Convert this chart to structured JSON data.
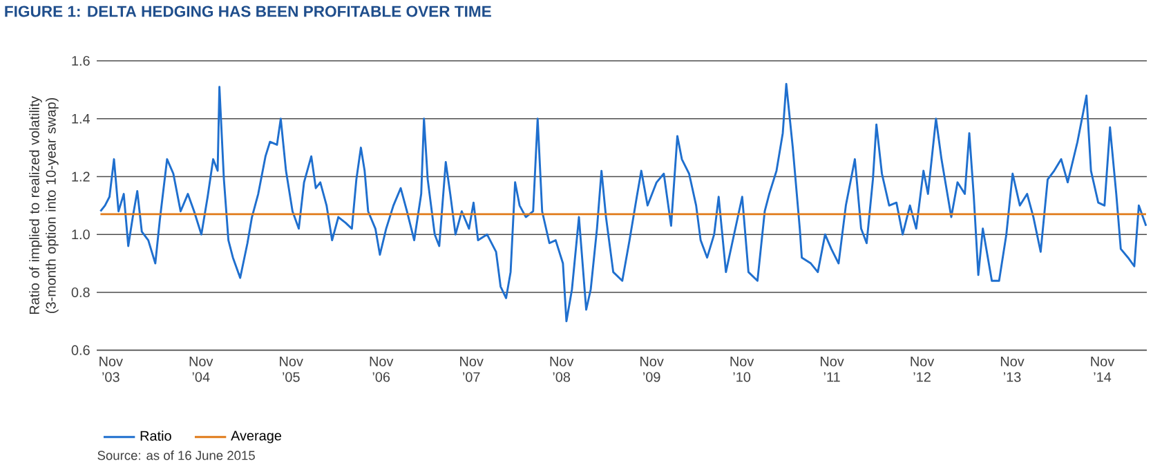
{
  "chart_data": {
    "type": "line",
    "title": "FIGURE 1: DELTA HEDGING HAS BEEN PROFITABLE OVER TIME",
    "ylabel": "Ratio of implied to realized volatility (3-month option into 10-year swap)",
    "xlim": [
      "2003-09-05",
      "2015-04-29"
    ],
    "ylim": [
      0.6,
      1.6
    ],
    "yticks": [
      0.6,
      0.8,
      {
        "value": 1.0,
        "label": "1.0"
      },
      1.2,
      1.4,
      1.6
    ],
    "xticks": [
      {
        "value": "2003-11",
        "label": "Nov ’03"
      },
      {
        "value": "2004-11",
        "label": "Nov ’04"
      },
      {
        "value": "2005-11",
        "label": "Nov ’05"
      },
      {
        "value": "2006-11",
        "label": "Nov ’06"
      },
      {
        "value": "2007-11",
        "label": "Nov ’07"
      },
      {
        "value": "2008-11",
        "label": "Nov ’08"
      },
      {
        "value": "2009-11",
        "label": "Nov ’09"
      },
      {
        "value": "2010-11",
        "label": "Nov ’10"
      },
      {
        "value": "2011-11",
        "label": "Nov ’11"
      },
      {
        "value": "2012-11",
        "label": "Nov ’12"
      },
      {
        "value": "2013-11",
        "label": "Nov ’13"
      },
      {
        "value": "2014-11",
        "label": "Nov ’14"
      }
    ],
    "grid": "y",
    "legend": "bottom left",
    "line_style": "solid",
    "series": [
      {
        "name": "Ratio",
        "color": "#1f6fce",
        "x": [
          "2003-09-20",
          "2003-10-08",
          "2003-10-26",
          "2003-11-14",
          "2003-12-02",
          "2003-12-23",
          "2004-01-11",
          "2004-01-29",
          "2004-02-17",
          "2004-03-05",
          "2004-04-01",
          "2004-04-29",
          "2004-05-17",
          "2004-06-16",
          "2004-07-11",
          "2004-08-10",
          "2004-09-09",
          "2004-10-04",
          "2004-11-03",
          "2004-11-28",
          "2004-12-20",
          "2005-01-08",
          "2005-01-15",
          "2005-02-03",
          "2005-02-21",
          "2005-03-09",
          "2005-04-08",
          "2005-05-07",
          "2005-05-25",
          "2005-06-20",
          "2005-07-19",
          "2005-08-07",
          "2005-09-05",
          "2005-09-20",
          "2005-10-11",
          "2005-11-07",
          "2005-12-02",
          "2005-12-23",
          "2006-01-22",
          "2006-02-10",
          "2006-02-28",
          "2006-03-23",
          "2006-04-15",
          "2006-05-10",
          "2006-06-09",
          "2006-07-04",
          "2006-07-22",
          "2006-08-10",
          "2006-08-25",
          "2006-09-09",
          "2006-10-08",
          "2006-10-26",
          "2006-11-21",
          "2006-12-20",
          "2007-01-19",
          "2007-02-14",
          "2007-03-13",
          "2007-04-11",
          "2007-04-22",
          "2007-05-07",
          "2007-06-05",
          "2007-06-23",
          "2007-07-19",
          "2007-08-07",
          "2007-08-28",
          "2007-09-23",
          "2007-10-22",
          "2007-11-10",
          "2007-11-28",
          "2008-01-04",
          "2008-02-10",
          "2008-02-28",
          "2008-03-20",
          "2008-04-08",
          "2008-04-26",
          "2008-05-14",
          "2008-06-09",
          "2008-07-08",
          "2008-07-26",
          "2008-08-14",
          "2008-09-13",
          "2008-10-08",
          "2008-11-07",
          "2008-11-21",
          "2008-12-13",
          "2009-01-11",
          "2009-02-10",
          "2009-02-28",
          "2009-03-23",
          "2009-04-11",
          "2009-04-29",
          "2009-05-28",
          "2009-07-04",
          "2009-08-03",
          "2009-09-02",
          "2009-09-20",
          "2009-10-15",
          "2009-11-21",
          "2009-12-20",
          "2010-01-19",
          "2010-02-14",
          "2010-03-02",
          "2010-04-01",
          "2010-04-29",
          "2010-05-17",
          "2010-06-13",
          "2010-07-11",
          "2010-07-29",
          "2010-08-28",
          "2010-09-23",
          "2010-11-03",
          "2010-11-28",
          "2011-01-04",
          "2011-02-03",
          "2011-02-21",
          "2011-03-20",
          "2011-04-15",
          "2011-04-29",
          "2011-05-25",
          "2011-06-23",
          "2011-07-01",
          "2011-08-07",
          "2011-09-05",
          "2011-10-04",
          "2011-10-29",
          "2011-11-28",
          "2011-12-27",
          "2012-02-03",
          "2012-02-28",
          "2012-03-20",
          "2012-04-15",
          "2012-04-29",
          "2012-05-21",
          "2012-06-20",
          "2012-07-19",
          "2012-08-14",
          "2012-09-13",
          "2012-10-08",
          "2012-11-07",
          "2012-11-25",
          "2012-12-27",
          "2013-01-19",
          "2013-02-28",
          "2013-03-23",
          "2013-04-22",
          "2013-05-10",
          "2013-05-28",
          "2013-06-16",
          "2013-07-04",
          "2013-08-10",
          "2013-09-09",
          "2013-10-08",
          "2013-11-03",
          "2013-12-02",
          "2014-01-01",
          "2014-01-26",
          "2014-02-25",
          "2014-03-23",
          "2014-04-19",
          "2014-05-17",
          "2014-06-13",
          "2014-07-22",
          "2014-08-28",
          "2014-09-16",
          "2014-10-15",
          "2014-11-10",
          "2014-12-02",
          "2014-12-27",
          "2015-01-15",
          "2015-02-14",
          "2015-03-09",
          "2015-03-27",
          "2015-04-26"
        ],
        "values": [
          1.08,
          1.1,
          1.13,
          1.26,
          1.08,
          1.14,
          0.96,
          1.06,
          1.15,
          1.01,
          0.98,
          0.9,
          1.05,
          1.26,
          1.21,
          1.08,
          1.14,
          1.08,
          1.0,
          1.13,
          1.26,
          1.22,
          1.51,
          1.19,
          0.98,
          0.92,
          0.85,
          0.97,
          1.06,
          1.14,
          1.27,
          1.32,
          1.31,
          1.4,
          1.22,
          1.08,
          1.02,
          1.18,
          1.27,
          1.16,
          1.18,
          1.1,
          0.98,
          1.06,
          1.04,
          1.02,
          1.19,
          1.3,
          1.22,
          1.08,
          1.02,
          0.93,
          1.02,
          1.1,
          1.16,
          1.08,
          0.98,
          1.14,
          1.4,
          1.19,
          1.0,
          0.96,
          1.25,
          1.14,
          1.0,
          1.08,
          1.02,
          1.11,
          0.98,
          1.0,
          0.94,
          0.82,
          0.78,
          0.87,
          1.18,
          1.1,
          1.06,
          1.08,
          1.4,
          1.08,
          0.97,
          0.98,
          0.9,
          0.7,
          0.81,
          1.06,
          0.74,
          0.81,
          1.02,
          1.22,
          1.06,
          0.87,
          0.84,
          0.98,
          1.13,
          1.22,
          1.1,
          1.18,
          1.21,
          1.03,
          1.34,
          1.26,
          1.21,
          1.1,
          0.98,
          0.92,
          1.0,
          1.13,
          0.87,
          0.97,
          1.13,
          0.87,
          0.84,
          1.08,
          1.14,
          1.22,
          1.35,
          1.52,
          1.3,
          1.02,
          0.92,
          0.9,
          0.87,
          1.0,
          0.95,
          0.9,
          1.1,
          1.26,
          1.02,
          0.97,
          1.19,
          1.38,
          1.21,
          1.1,
          1.11,
          1.0,
          1.1,
          1.02,
          1.22,
          1.14,
          1.4,
          1.26,
          1.06,
          1.18,
          1.14,
          1.35,
          1.13,
          0.86,
          1.02,
          0.84,
          0.84,
          1.0,
          1.21,
          1.1,
          1.14,
          1.06,
          0.94,
          1.19,
          1.22,
          1.26,
          1.18,
          1.32,
          1.48,
          1.22,
          1.11,
          1.1,
          1.37,
          1.14,
          0.95,
          0.92,
          0.89,
          1.1,
          1.03
        ]
      },
      {
        "name": "Average",
        "color": "#e07b1a",
        "x": [
          "2003-09-20",
          "2015-04-26"
        ],
        "values": [
          1.07,
          1.07
        ]
      }
    ],
    "annotations": [
      "Source: as of 16 June 2015"
    ]
  }
}
